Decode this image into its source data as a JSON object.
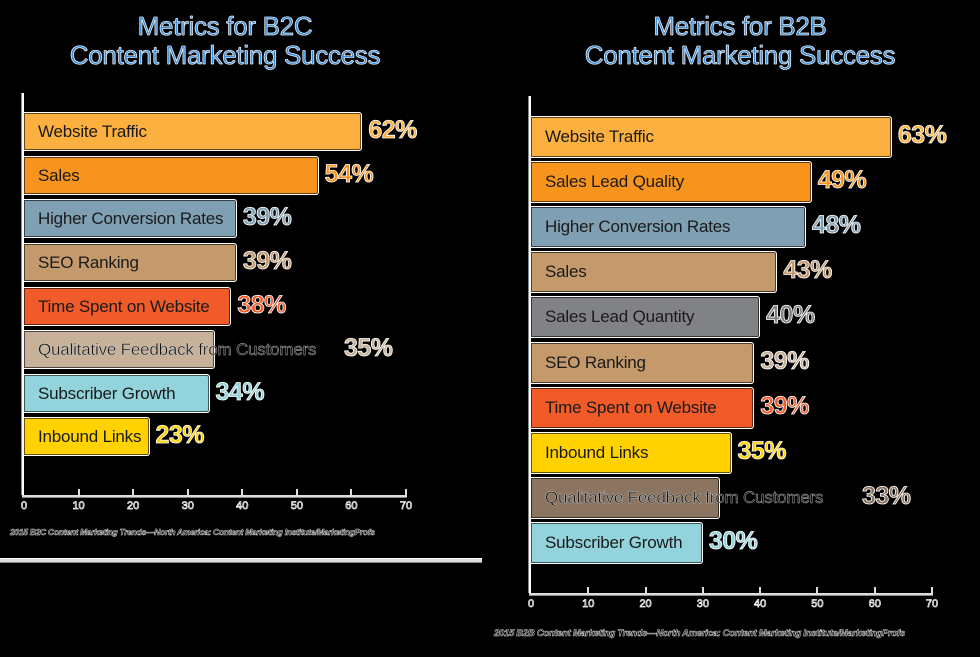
{
  "chart_data": [
    {
      "type": "bar",
      "orientation": "horizontal",
      "title": "Metrics for B2C Content Marketing Success",
      "categories": [
        "Website Traffic",
        "Sales",
        "Higher Conversion Rates",
        "SEO Ranking",
        "Time Spent on Website",
        "Qualitative Feedback from Customers",
        "Subscriber Growth",
        "Inbound Links"
      ],
      "values": [
        62,
        54,
        39,
        39,
        38,
        35,
        34,
        23
      ],
      "value_labels": [
        "62%",
        "54%",
        "39%",
        "39%",
        "38%",
        "35%",
        "34%",
        "23%"
      ],
      "colors": [
        "#fbb040",
        "#f7941d",
        "#7f9fb3",
        "#c49a6c",
        "#f15a29",
        "#c7b299",
        "#93d4dc",
        "#ffd200"
      ],
      "xlabel": "",
      "ylabel": "",
      "xlim": [
        0,
        70
      ],
      "xticks": [
        0,
        10,
        20,
        30,
        40,
        50,
        60,
        70
      ],
      "grid": false,
      "legend": null,
      "source": "2015 B2C Content Marketing Trends—North America: Content Marketing Institute/MarketingProfs"
    },
    {
      "type": "bar",
      "orientation": "horizontal",
      "title": "Metrics for B2B Content Marketing Success",
      "categories": [
        "Website Traffic",
        "Sales Lead Quality",
        "Higher Conversion Rates",
        "Sales",
        "Sales Lead Quantity",
        "SEO Ranking",
        "Time Spent on Website",
        "Inbound Links",
        "Qualitative Feedback from Customers",
        "Subscriber Growth"
      ],
      "values": [
        63,
        49,
        48,
        43,
        40,
        39,
        39,
        35,
        33,
        30
      ],
      "value_labels": [
        "63%",
        "49%",
        "48%",
        "43%",
        "40%",
        "39%",
        "39%",
        "35%",
        "33%",
        "30%"
      ],
      "colors": [
        "#fbb040",
        "#f7941d",
        "#7f9fb3",
        "#c49a6c",
        "#808285",
        "#c49a6c",
        "#f15a29",
        "#ffd200",
        "#8b7560",
        "#93d4dc"
      ],
      "value_colors": [
        "#fbb040",
        "#f7941d",
        "#7f9fb3",
        "#c49a6c",
        "#808285",
        "#c7b299",
        "#f15a29",
        "#ffd200",
        "#8b7560",
        "#93d4dc"
      ],
      "xlabel": "",
      "ylabel": "",
      "xlim": [
        0,
        70
      ],
      "xticks": [
        0,
        10,
        20,
        30,
        40,
        50,
        60,
        70
      ],
      "grid": false,
      "legend": null,
      "source": "2015 B2B Content Marketing Trends—North America: Content Marketing Institute/MarketingProfs"
    }
  ],
  "b2c": {
    "title_line1": "Metrics for B2C",
    "title_line2": "Content Marketing Success",
    "source": "2015 B2C Content Marketing Trends—North America: Content Marketing Institute/MarketingProfs"
  },
  "b2b": {
    "title_line1": "Metrics for B2B",
    "title_line2": "Content Marketing Success",
    "source": "2015 B2B Content Marketing Trends—North America: Content Marketing Institute/MarketingProfs"
  }
}
